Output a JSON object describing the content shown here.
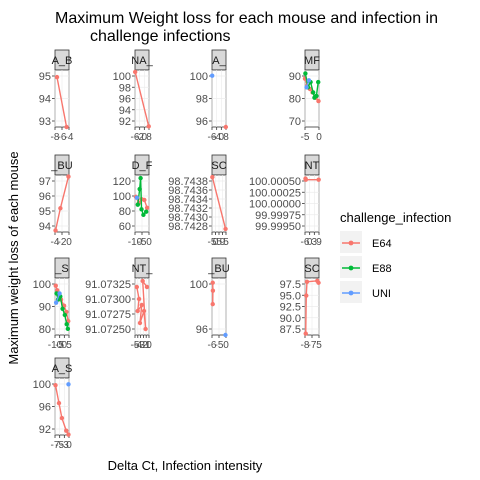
{
  "chart_data": {
    "type": "line",
    "title": "Maximum Weight loss for each mouse and infection in challenge infections",
    "title_lines": [
      "Maximum Weight loss for each mouse and infection in",
      "challenge infections"
    ],
    "xlabel": "Delta Ct, Infection intensity",
    "ylabel": "Maximum weight loss of each mouse",
    "grid": true,
    "legend": {
      "title": "challenge_infection",
      "position": "right",
      "entries": [
        {
          "name": "E64",
          "color": "#F8766D"
        },
        {
          "name": "E88",
          "color": "#00BA38"
        },
        {
          "name": "UNI",
          "color": "#619CFF"
        }
      ]
    },
    "panels": [
      {
        "strip": "A_B",
        "yticks": [
          "95",
          "94",
          "93"
        ],
        "xticks": [
          "-8",
          "-6",
          "-4"
        ],
        "ylim": [
          92.9,
          96.1
        ],
        "xlim": [
          -9.5,
          -3.2
        ],
        "series": [
          {
            "name": "E64",
            "points": [
              [
                -8.6,
                95.7
              ],
              [
                -4.3,
                92.9
              ]
            ]
          }
        ]
      },
      {
        "strip": "NA_",
        "yticks": [
          "100",
          "98",
          "96",
          "94",
          "92"
        ],
        "xticks": [
          "-6",
          "-2",
          "0",
          "8"
        ],
        "ylim": [
          91.8,
          100.6
        ],
        "xlim": [
          -6.8,
          8.5
        ],
        "series": [
          {
            "name": "E64",
            "points": [
              [
                -6.6,
                100.3
              ],
              [
                8.2,
                91.9
              ]
            ]
          }
        ]
      },
      {
        "strip": "A_",
        "yticks": [
          "100",
          "98",
          "96"
        ],
        "xticks": [
          "-6",
          "-4",
          "0",
          "8"
        ],
        "ylim": [
          95.5,
          100.5
        ],
        "xlim": [
          -7.0,
          8.5
        ],
        "series": [
          {
            "name": "UNI",
            "points": [
              [
                -6.8,
                100
              ]
            ]
          },
          {
            "name": "E64",
            "points": [
              [
                8.3,
                95.5
              ]
            ]
          }
        ]
      },
      {
        "strip": "MF",
        "yticks": [
          "90",
          "80",
          "70"
        ],
        "xticks": [
          "-5",
          "0"
        ],
        "ylim": [
          69,
          102
        ],
        "xlim": [
          -7.8,
          3.0
        ],
        "series": [
          {
            "name": "E64",
            "points": [
              [
                -7.8,
                97
              ],
              [
                -6.0,
                93
              ],
              [
                -4.0,
                91
              ],
              [
                -2.0,
                89
              ],
              [
                0.5,
                86
              ],
              [
                2.6,
                84
              ]
            ]
          },
          {
            "name": "E88",
            "points": [
              [
                -7.5,
                100
              ],
              [
                -5.5,
                92
              ],
              [
                -3.5,
                95
              ],
              [
                -1.5,
                89
              ],
              [
                -0.5,
                86
              ],
              [
                1.0,
                87
              ],
              [
                2.4,
                95
              ]
            ]
          },
          {
            "name": "UNI",
            "points": [
              [
                -6.6,
                92
              ],
              [
                -4.8,
                96
              ]
            ]
          }
        ]
      },
      {
        "strip": "_BU",
        "yticks": [
          "97",
          "96",
          "95",
          "94"
        ],
        "xticks": [
          "-4",
          "-2",
          "0"
        ],
        "ylim": [
          93.8,
          97.4
        ],
        "xlim": [
          -4.5,
          0.7
        ],
        "series": [
          {
            "name": "E64",
            "points": [
              [
                -4.3,
                93.9
              ],
              [
                -2.5,
                95.3
              ],
              [
                0.5,
                97.3
              ]
            ]
          }
        ]
      },
      {
        "strip": "D_F",
        "yticks": [
          "120",
          "100",
          "80",
          "60"
        ],
        "xticks": [
          "-10",
          "-5",
          "0"
        ],
        "ylim": [
          55,
          128
        ],
        "xlim": [
          -12,
          3
        ],
        "series": [
          {
            "name": "E64",
            "points": [
              [
                -11,
                100
              ],
              [
                -8,
                92
              ],
              [
                -5,
                97
              ],
              [
                -2,
                96
              ],
              [
                1,
                86
              ]
            ]
          },
          {
            "name": "E88",
            "points": [
              [
                -9,
                90
              ],
              [
                -7,
                110
              ],
              [
                -6,
                124
              ],
              [
                -5,
                84
              ],
              [
                -3,
                77
              ],
              [
                0,
                81
              ]
            ]
          },
          {
            "name": "UNI",
            "points": [
              [
                -10,
                99
              ]
            ]
          }
        ]
      },
      {
        "strip": "SC",
        "yticks": [
          "98.7438",
          "98.7436",
          "98.7434",
          "98.7432",
          "98.7430",
          "98.7428"
        ],
        "xticks": [
          "-5",
          "0",
          "5",
          "9",
          "5"
        ],
        "ylim": [
          98.74274,
          98.74384
        ],
        "xlim": [
          -6.0,
          9.5
        ],
        "series": [
          {
            "name": "E64",
            "points": [
              [
                -5.6,
                98.7438
              ],
              [
                9.0,
                98.7428
              ]
            ]
          }
        ]
      },
      {
        "strip": "NT",
        "yticks": [
          "100.00050",
          "100.00025",
          "100.00000",
          "99.99975",
          "99.99950"
        ],
        "xticks": [
          "-6",
          "0",
          "3",
          "9"
        ],
        "ylim": [
          99.99945,
          100.00055
        ],
        "xlim": [
          -7.0,
          9.6
        ],
        "series": [
          {
            "name": "E64",
            "points": [
              [
                -6.4,
                100.00048
              ],
              [
                -6.0,
                100.00046
              ],
              [
                9.2,
                100.00046
              ]
            ]
          }
        ]
      },
      {
        "strip": "_S",
        "yticks": [
          "100",
          "90",
          "80"
        ],
        "xticks": [
          "-10",
          "-5",
          "0",
          "5"
        ],
        "ylim": [
          71,
          108
        ],
        "xlim": [
          -12,
          6.5
        ],
        "series": [
          {
            "name": "E64",
            "points": [
              [
                -11,
                103
              ],
              [
                -9,
                100
              ],
              [
                -7,
                97
              ],
              [
                -4,
                94
              ],
              [
                0,
                90
              ],
              [
                3,
                86
              ],
              [
                5.5,
                80
              ]
            ]
          },
          {
            "name": "E88",
            "points": [
              [
                -10,
                98
              ],
              [
                -8,
                94
              ],
              [
                -5,
                96
              ],
              [
                -2,
                88
              ],
              [
                1,
                84
              ],
              [
                3.5,
                78
              ],
              [
                5.0,
                75
              ]
            ]
          },
          {
            "name": "UNI",
            "points": [
              [
                -10.5,
                92
              ],
              [
                -6,
                98
              ]
            ]
          }
        ]
      },
      {
        "strip": "NT_",
        "yticks": [
          "91.07325",
          "91.07300",
          "91.07275",
          "91.07250"
        ],
        "xticks": [
          "-5",
          "-4",
          "-3",
          "-2",
          "-1",
          "0"
        ],
        "ylim": [
          91.0724,
          91.07335
        ],
        "xlim": [
          -5.6,
          0.6
        ],
        "series": [
          {
            "name": "E64",
            "points": [
              [
                -4.8,
                91.0732
              ],
              [
                -3.8,
                91.073
              ],
              [
                -4.4,
                91.0728
              ],
              [
                -2.6,
                91.0729
              ],
              [
                -3.4,
                91.0726
              ],
              [
                -1.6,
                91.0728
              ],
              [
                -0.9,
                91.0725
              ],
              [
                -2.2,
                91.0733
              ],
              [
                -0.3,
                91.0732
              ]
            ]
          }
        ]
      },
      {
        "strip": "_BU",
        "yticks": [
          "100",
          "96"
        ],
        "xticks": [
          "-6",
          "-5",
          "0"
        ],
        "ylim": [
          94.4,
          101.6
        ],
        "xlim": [
          -7.0,
          0.8
        ],
        "series": [
          {
            "name": "E64",
            "points": [
              [
                -6.6,
                101
              ],
              [
                -6.5,
                100
              ],
              [
                -6.6,
                98.3
              ]
            ]
          },
          {
            "name": "UNI",
            "points": [
              [
                0.5,
                94.4
              ]
            ]
          }
        ]
      },
      {
        "strip": "SC",
        "yticks": [
          "97.5",
          "95.0",
          "92.5",
          "90.0",
          "87.5"
        ],
        "xticks": [
          "-8",
          "-7",
          "5"
        ],
        "ylim": [
          87.2,
          99.2
        ],
        "xlim": [
          -9.0,
          6.5
        ],
        "series": [
          {
            "name": "E64",
            "points": [
              [
                -8.2,
                87.5
              ],
              [
                -7.6,
                95.5
              ],
              [
                -6.8,
                98.4
              ],
              [
                4.6,
                98.6
              ],
              [
                6.0,
                98.2
              ]
            ]
          }
        ]
      },
      {
        "strip": "A_S",
        "yticks": [
          "100",
          "96",
          "92"
        ],
        "xticks": [
          "-7",
          "-5",
          "-3",
          "0"
        ],
        "ylim": [
          89.5,
          101.3
        ],
        "xlim": [
          -7.5,
          0.6
        ],
        "series": [
          {
            "name": "E64",
            "points": [
              [
                -7.2,
                99.8
              ],
              [
                -5.2,
                96.1
              ],
              [
                -3.5,
                93.0
              ],
              [
                -1.0,
                90.4
              ],
              [
                0.3,
                89.6
              ]
            ]
          },
          {
            "name": "UNI",
            "points": [
              [
                0.3,
                100.0
              ]
            ]
          }
        ]
      }
    ]
  }
}
